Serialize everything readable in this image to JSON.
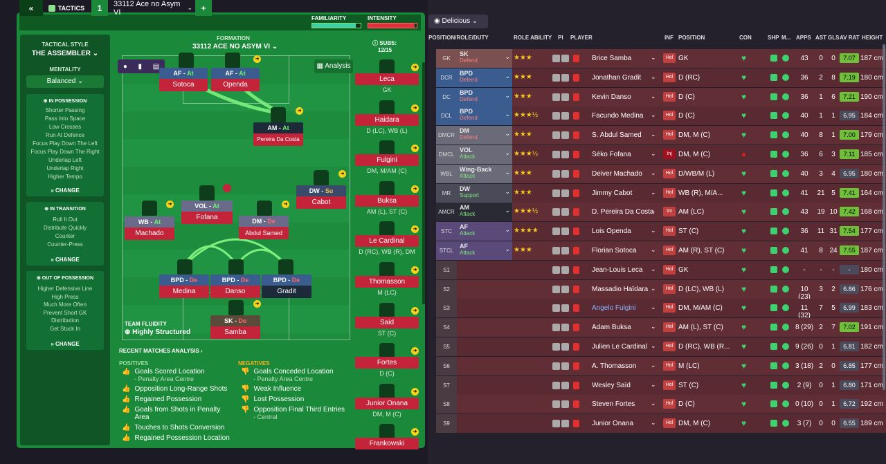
{
  "header": {
    "back": "«",
    "tactics_label": "TACTICS",
    "slot": "1",
    "tactic_name": "33112 Ace no Asym VI",
    "add": "+",
    "familiarity": "FAMILIARITY",
    "intensity": "INTENSITY",
    "fam_level": 0.9,
    "int_level": 0.95
  },
  "view_selector": {
    "label": "Delicious"
  },
  "left_panel": {
    "style_title": "TACTICAL STYLE",
    "style_value": "THE ASSEMBLER",
    "mentality_title": "MENTALITY",
    "mentality_value": "Balanced",
    "in_possession": {
      "title": "IN POSSESSION",
      "items": [
        "Shorter Passing",
        "Pass Into Space",
        "Low Crosses",
        "Run At Defence",
        "Focus Play Down The Left",
        "Focus Play Down The Right",
        "Underlap Left",
        "Underlap Right",
        "Higher Tempo"
      ],
      "change": "CHANGE"
    },
    "in_transition": {
      "title": "IN TRANSITION",
      "items": [
        "Roll It Out",
        "Distribute Quickly",
        "Counter",
        "Counter-Press"
      ],
      "change": "CHANGE"
    },
    "out_of_possession": {
      "title": "OUT OF POSSESSION",
      "items": [
        "Higher Defensive Line",
        "High Press",
        "Much More Often",
        "Prevent Short GK",
        "Distribution",
        "Get Stuck In"
      ],
      "change": "CHANGE"
    }
  },
  "formation": {
    "label": "FORMATION",
    "name": "33112 ACE NO ASYM VI",
    "analysis": "Analysis",
    "subs_label": "SUBS:",
    "subs_count": "12/15",
    "players": [
      {
        "role": "AF",
        "duty": "At",
        "name": "Sotoca"
      },
      {
        "role": "AF",
        "duty": "At",
        "name": "Openda"
      },
      {
        "role": "AM",
        "duty": "At",
        "name": "Pereira Da Costa"
      },
      {
        "role": "DW",
        "duty": "Su",
        "name": "Cabot"
      },
      {
        "role": "VOL",
        "duty": "At",
        "name": "Fofana"
      },
      {
        "role": "WB",
        "duty": "At",
        "name": "Machado"
      },
      {
        "role": "DM",
        "duty": "De",
        "name": "Abdul Samed"
      },
      {
        "role": "BPD",
        "duty": "De",
        "name": "Medina"
      },
      {
        "role": "BPD",
        "duty": "De",
        "name": "Danso"
      },
      {
        "role": "BPD",
        "duty": "De",
        "name": "Gradit"
      },
      {
        "role": "SK",
        "duty": "De",
        "name": "Samba"
      }
    ],
    "fluidity_label": "TEAM FLUIDITY",
    "fluidity_value": "Highly Structured"
  },
  "subs": [
    {
      "name": "Leca",
      "pos": "GK"
    },
    {
      "name": "Haidara",
      "pos": "D (LC), WB (L)"
    },
    {
      "name": "Fulgini",
      "pos": "DM, M/AM (C)"
    },
    {
      "name": "Buksa",
      "pos": "AM (L), ST (C)"
    },
    {
      "name": "Le Cardinal",
      "pos": "D (RC), WB (R), DM"
    },
    {
      "name": "Thomasson",
      "pos": "M (LC)"
    },
    {
      "name": "Said",
      "pos": "ST (C)"
    },
    {
      "name": "Fortes",
      "pos": "D (C)"
    },
    {
      "name": "Junior Onana",
      "pos": "DM, M (C)"
    },
    {
      "name": "Frankowski",
      "pos": ""
    }
  ],
  "analysis": {
    "title": "RECENT MATCHES ANALYSIS",
    "positives_title": "POSITIVES",
    "positives": [
      {
        "t": "Goals Scored Location",
        "s": "- Penalty Area Centre"
      },
      {
        "t": "Opposition Long-Range Shots",
        "s": ""
      },
      {
        "t": "Regained Possession",
        "s": ""
      },
      {
        "t": "Goals from Shots in Penalty Area",
        "s": ""
      },
      {
        "t": "Touches to Shots Conversion",
        "s": ""
      },
      {
        "t": "Regained Possession Location",
        "s": ""
      }
    ],
    "negatives_title": "NEGATIVES",
    "negatives": [
      {
        "t": "Goals Conceded Location",
        "s": "- Penalty Area Centre"
      },
      {
        "t": "Weak Influence",
        "s": ""
      },
      {
        "t": "Lost Possession",
        "s": ""
      },
      {
        "t": "Opposition Final Third Entries",
        "s": "- Central"
      }
    ]
  },
  "table": {
    "columns": [
      "POSITION/ROLE/DUTY",
      "ROLE ABILITY",
      "PI",
      "PLAYER",
      "INF",
      "POSITION",
      "CON",
      "SHP",
      "M...",
      "APPS",
      "AST",
      "GLS",
      "AV RAT",
      "HEIGHT"
    ],
    "rows": [
      {
        "pos": "GK",
        "role": "SK",
        "duty": "Defend",
        "stars": "★★★",
        "player": "Brice Samba",
        "inf": "Hol",
        "position": "GK",
        "apps": "43",
        "ast": "0",
        "gls": "0",
        "rat": "7.07",
        "height": "187 cm"
      },
      {
        "pos": "DCR",
        "role": "BPD",
        "duty": "Defend",
        "stars": "★★★",
        "player": "Jonathan Gradit",
        "inf": "Hol",
        "position": "D (RC)",
        "apps": "36",
        "ast": "2",
        "gls": "8",
        "rat": "7.19",
        "height": "180 cm"
      },
      {
        "pos": "DC",
        "role": "BPD",
        "duty": "Defend",
        "stars": "★★★",
        "player": "Kevin Danso",
        "inf": "Hol",
        "position": "D (C)",
        "apps": "36",
        "ast": "1",
        "gls": "6",
        "rat": "7.21",
        "height": "190 cm"
      },
      {
        "pos": "DCL",
        "role": "BPD",
        "duty": "Defend",
        "stars": "★★★½",
        "player": "Facundo Medina",
        "inf": "Hol",
        "position": "D (C)",
        "apps": "40",
        "ast": "1",
        "gls": "1",
        "rat": "6.95",
        "height": "184 cm"
      },
      {
        "pos": "DMCR",
        "role": "DM",
        "duty": "Defend",
        "stars": "★★★",
        "player": "S. Abdul Samed",
        "inf": "Hol",
        "position": "DM, M (C)",
        "apps": "40",
        "ast": "8",
        "gls": "1",
        "rat": "7.00",
        "height": "179 cm"
      },
      {
        "pos": "DMCL",
        "role": "VOL",
        "duty": "Attack",
        "stars": "★★★½",
        "player": "Séko Fofana",
        "inf": "Inj",
        "position": "DM, M (C)",
        "apps": "36",
        "ast": "6",
        "gls": "3",
        "rat": "7.11",
        "height": "185 cm"
      },
      {
        "pos": "WBL",
        "role": "Wing-Back",
        "duty": "Attack",
        "stars": "★★★",
        "player": "Deiver Machado",
        "inf": "Hol",
        "position": "D/WB/M (L)",
        "apps": "40",
        "ast": "3",
        "gls": "4",
        "rat": "6.95",
        "height": "180 cm"
      },
      {
        "pos": "MR",
        "role": "DW",
        "duty": "Support",
        "stars": "★★★",
        "player": "Jimmy Cabot",
        "inf": "Hol",
        "position": "WB (R), M/A...",
        "apps": "41",
        "ast": "21",
        "gls": "5",
        "rat": "7.41",
        "height": "164 cm"
      },
      {
        "pos": "AMCR",
        "role": "AM",
        "duty": "Attack",
        "stars": "★★★½",
        "player": "D. Pereira Da Costa",
        "inf": "Int",
        "position": "AM (LC)",
        "apps": "43",
        "ast": "19",
        "gls": "10",
        "rat": "7.42",
        "height": "168 cm"
      },
      {
        "pos": "STC",
        "role": "AF",
        "duty": "Attack",
        "stars": "★★★★",
        "player": "Lois Openda",
        "inf": "Hol",
        "position": "ST (C)",
        "apps": "36",
        "ast": "11",
        "gls": "31",
        "rat": "7.54",
        "height": "177 cm"
      },
      {
        "pos": "STCL",
        "role": "AF",
        "duty": "Attack",
        "stars": "★★★",
        "player": "Florian Sotoca",
        "inf": "Hol",
        "position": "AM (R), ST (C)",
        "apps": "41",
        "ast": "8",
        "gls": "24",
        "rat": "7.55",
        "height": "187 cm"
      },
      {
        "pos": "S1",
        "role": "",
        "duty": "",
        "stars": "",
        "player": "Jean-Louis Leca",
        "inf": "Hol",
        "position": "GK",
        "apps": "-",
        "ast": "-",
        "gls": "-",
        "rat": "-",
        "height": "180 cm"
      },
      {
        "pos": "S2",
        "role": "",
        "duty": "",
        "stars": "",
        "player": "Massadio Haïdara",
        "inf": "Hol",
        "position": "D (LC), WB (L)",
        "apps": "10 (23)",
        "ast": "3",
        "gls": "2",
        "rat": "6.86",
        "height": "176 cm"
      },
      {
        "pos": "S3",
        "role": "",
        "duty": "",
        "stars": "",
        "player": "Angelo Fulgini",
        "inf": "Hol",
        "position": "DM, M/AM (C)",
        "apps": "11 (32)",
        "ast": "7",
        "gls": "5",
        "rat": "6.99",
        "height": "183 cm"
      },
      {
        "pos": "S4",
        "role": "",
        "duty": "",
        "stars": "",
        "player": "Adam Buksa",
        "inf": "Hol",
        "position": "AM (L), ST (C)",
        "apps": "8 (29)",
        "ast": "2",
        "gls": "7",
        "rat": "7.02",
        "height": "191 cm"
      },
      {
        "pos": "S5",
        "role": "",
        "duty": "",
        "stars": "",
        "player": "Julien Le Cardinal",
        "inf": "Hol",
        "position": "D (RC), WB (R...",
        "apps": "9 (26)",
        "ast": "0",
        "gls": "1",
        "rat": "6.81",
        "height": "182 cm"
      },
      {
        "pos": "S6",
        "role": "",
        "duty": "",
        "stars": "",
        "player": "A. Thomasson",
        "inf": "Hol",
        "position": "M (LC)",
        "apps": "3 (18)",
        "ast": "2",
        "gls": "0",
        "rat": "6.85",
        "height": "177 cm"
      },
      {
        "pos": "S7",
        "role": "",
        "duty": "",
        "stars": "",
        "player": "Wesley Saïd",
        "inf": "Hol",
        "position": "ST (C)",
        "apps": "2 (9)",
        "ast": "0",
        "gls": "1",
        "rat": "6.80",
        "height": "171 cm"
      },
      {
        "pos": "S8",
        "role": "",
        "duty": "",
        "stars": "",
        "player": "Steven Fortes",
        "inf": "Hol",
        "position": "D (C)",
        "apps": "0 (10)",
        "ast": "0",
        "gls": "1",
        "rat": "6.72",
        "height": "192 cm"
      },
      {
        "pos": "S9",
        "role": "",
        "duty": "",
        "stars": "",
        "player": "Junior Onana",
        "inf": "Hol",
        "position": "DM, M (C)",
        "apps": "3 (7)",
        "ast": "0",
        "gls": "0",
        "rat": "6.55",
        "height": "189 cm"
      }
    ]
  },
  "colors": {
    "accent": "#1a8a3a",
    "red": "#c4243a",
    "blue": "#3a5c8e",
    "rating_green": "#6fbf3a"
  }
}
